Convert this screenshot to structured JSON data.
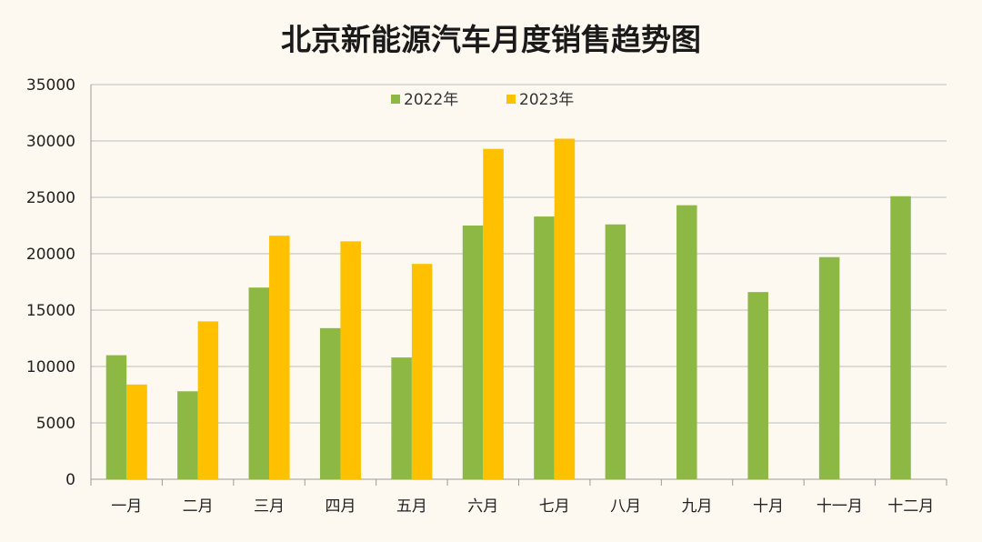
{
  "chart_data": {
    "type": "bar",
    "title": "北京新能源汽车月度销售趋势图",
    "xlabel": "",
    "ylabel": "",
    "ylim": [
      0,
      35000
    ],
    "yticks": [
      0,
      5000,
      10000,
      15000,
      20000,
      25000,
      30000,
      35000
    ],
    "grid": true,
    "legend_position": "top-center",
    "categories": [
      "一月",
      "二月",
      "三月",
      "四月",
      "五月",
      "六月",
      "七月",
      "八月",
      "九月",
      "十月",
      "十一月",
      "十二月"
    ],
    "series": [
      {
        "name": "2022年",
        "color": "#8db843",
        "values": [
          11000,
          7800,
          17000,
          13400,
          10800,
          22500,
          23300,
          22600,
          24300,
          16600,
          19700,
          25100
        ]
      },
      {
        "name": "2023年",
        "color": "#ffc000",
        "values": [
          8400,
          14000,
          21600,
          21100,
          19100,
          29300,
          30200,
          null,
          null,
          null,
          null,
          null
        ]
      }
    ]
  }
}
